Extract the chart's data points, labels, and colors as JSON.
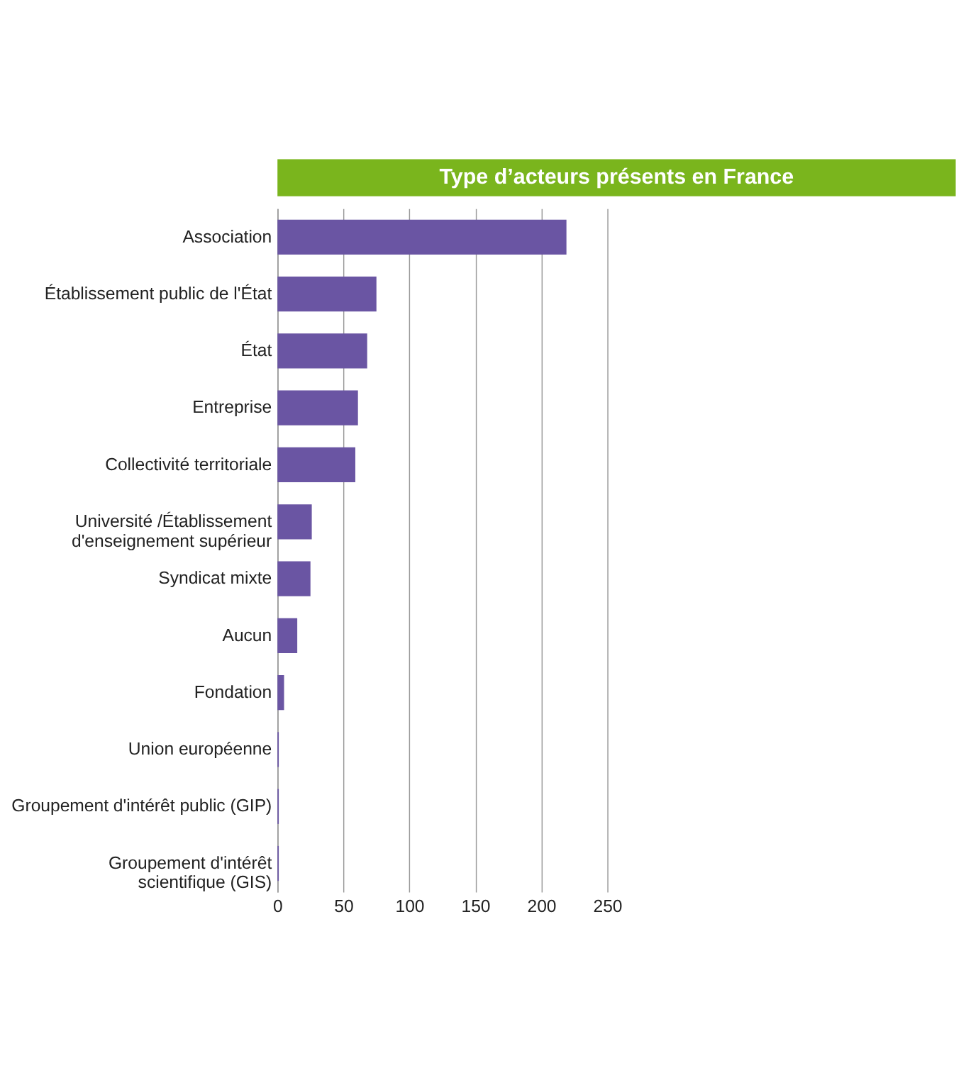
{
  "chart_data": {
    "type": "bar",
    "orientation": "horizontal",
    "title": "Type d’acteurs présents en France",
    "categories": [
      "Association",
      "Établissement public de l'État",
      "État",
      "Entreprise",
      "Collectivité territoriale",
      "Université /Établissement\nd'enseignement supérieur",
      "Syndicat mixte",
      "Aucun",
      "Fondation",
      "Union européenne",
      "Groupement d'intérêt public (GIP)",
      "Groupement d'intérêt\nscientifique (GIS)"
    ],
    "values": [
      219,
      75,
      68,
      61,
      59,
      26,
      25,
      15,
      5,
      1,
      1,
      1
    ],
    "color": "#6a55a3",
    "xlim": [
      0,
      250
    ],
    "xticks": [
      0,
      50,
      100,
      150,
      200,
      250
    ],
    "grid": "x"
  }
}
